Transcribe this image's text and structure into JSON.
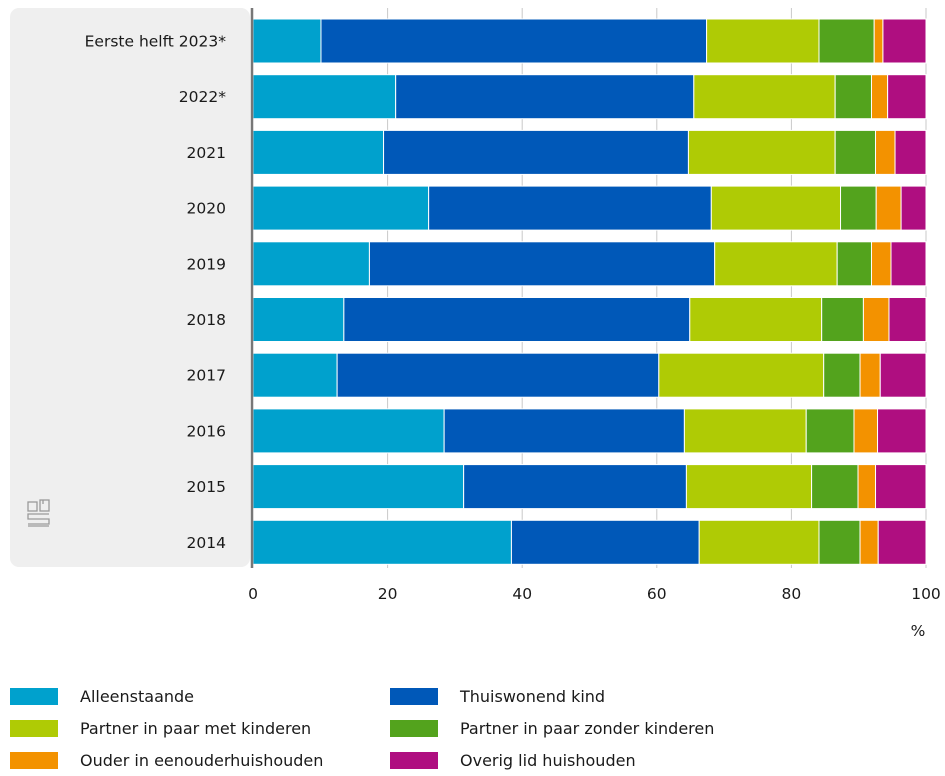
{
  "chart_data": {
    "type": "bar",
    "orientation": "horizontal",
    "stacked": true,
    "categories": [
      "Eerste helft 2023*",
      "2022*",
      "2021",
      "2020",
      "2019",
      "2018",
      "2017",
      "2016",
      "2015",
      "2014"
    ],
    "series": [
      {
        "name": "Alleenstaande",
        "color": "#00a1cd",
        "values": [
          10.1,
          21.2,
          19.4,
          26.1,
          17.3,
          13.5,
          12.5,
          28.4,
          31.3,
          38.4
        ]
      },
      {
        "name": "Thuiswonend kind",
        "color": "#0058b8",
        "values": [
          57.3,
          44.3,
          45.3,
          42.0,
          51.3,
          51.4,
          47.8,
          35.7,
          33.1,
          27.9
        ]
      },
      {
        "name": "Partner in paar met kinderen",
        "color": "#afcb05",
        "values": [
          16.7,
          21.0,
          21.8,
          19.2,
          18.2,
          19.6,
          24.5,
          18.1,
          18.6,
          17.8
        ]
      },
      {
        "name": "Partner in paar zonder kinderen",
        "color": "#53a31d",
        "values": [
          8.2,
          5.4,
          6.0,
          5.3,
          5.1,
          6.2,
          5.4,
          7.1,
          6.9,
          6.1
        ]
      },
      {
        "name": "Ouder in eenouderhuishouden",
        "color": "#f39200",
        "values": [
          1.3,
          2.4,
          2.9,
          3.7,
          2.9,
          3.8,
          3.0,
          3.5,
          2.6,
          2.7
        ]
      },
      {
        "name": "Overig lid huishouden",
        "color": "#af0e80",
        "values": [
          6.4,
          5.7,
          4.6,
          3.7,
          5.2,
          5.5,
          6.8,
          7.2,
          7.5,
          7.1
        ]
      }
    ],
    "x_ticks": [
      "0",
      "20",
      "40",
      "60",
      "80",
      "100"
    ],
    "xlim": [
      0,
      100
    ],
    "x_unit": "%",
    "grid": true,
    "legend_position": "bottom",
    "legend_labels": [
      "Alleenstaande",
      "Thuiswonend kind",
      "Partner in paar met kinderen",
      "Partner in paar zonder kinderen",
      "Ouder in eenouderhuishouden",
      "Overig lid huishouden"
    ],
    "logo_icon": "cbs-logo-icon"
  }
}
